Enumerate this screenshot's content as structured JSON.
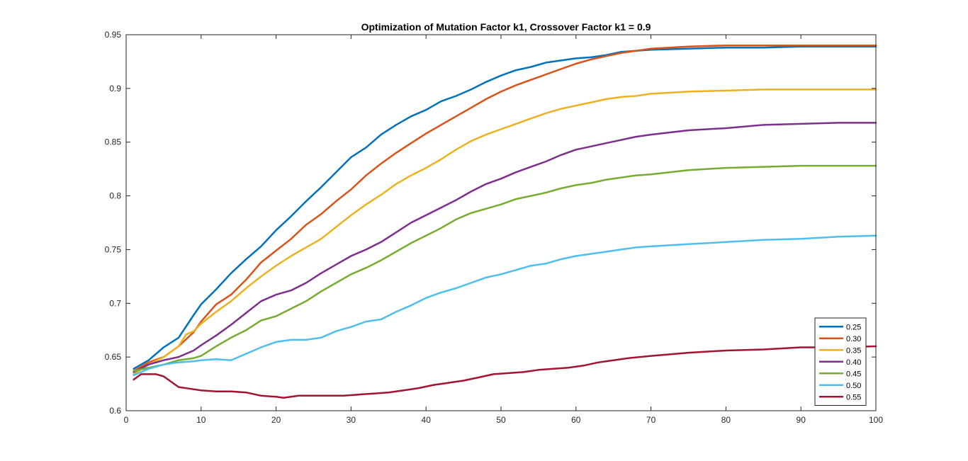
{
  "chart_data": {
    "type": "line",
    "title": "Optimization of Mutation Factor k1, Crossover Factor k1 = 0.9",
    "xlabel": "",
    "ylabel": "",
    "xlim": [
      0,
      100
    ],
    "ylim": [
      0.6,
      0.95
    ],
    "xticks": [
      "0",
      "10",
      "20",
      "30",
      "40",
      "50",
      "60",
      "70",
      "80",
      "90",
      "100"
    ],
    "yticks": [
      "0.6",
      "0.65",
      "0.7",
      "0.75",
      "0.8",
      "0.85",
      "0.9",
      "0.95"
    ],
    "grid": false,
    "legend_position": "bottom-right",
    "series": [
      {
        "name": "0.25",
        "color": "#0072BD",
        "points": [
          [
            1,
            0.639
          ],
          [
            3,
            0.647
          ],
          [
            5,
            0.659
          ],
          [
            7,
            0.668
          ],
          [
            9,
            0.689
          ],
          [
            10,
            0.699
          ],
          [
            12,
            0.713
          ],
          [
            14,
            0.728
          ],
          [
            16,
            0.741
          ],
          [
            18,
            0.753
          ],
          [
            20,
            0.768
          ],
          [
            22,
            0.781
          ],
          [
            24,
            0.795
          ],
          [
            26,
            0.808
          ],
          [
            28,
            0.822
          ],
          [
            30,
            0.836
          ],
          [
            32,
            0.845
          ],
          [
            34,
            0.857
          ],
          [
            36,
            0.866
          ],
          [
            38,
            0.874
          ],
          [
            40,
            0.88
          ],
          [
            42,
            0.888
          ],
          [
            44,
            0.893
          ],
          [
            46,
            0.899
          ],
          [
            48,
            0.906
          ],
          [
            50,
            0.912
          ],
          [
            52,
            0.917
          ],
          [
            54,
            0.92
          ],
          [
            56,
            0.924
          ],
          [
            58,
            0.926
          ],
          [
            60,
            0.928
          ],
          [
            62,
            0.929
          ],
          [
            64,
            0.931
          ],
          [
            66,
            0.934
          ],
          [
            68,
            0.935
          ],
          [
            70,
            0.936
          ],
          [
            75,
            0.937
          ],
          [
            80,
            0.938
          ],
          [
            85,
            0.938
          ],
          [
            90,
            0.939
          ],
          [
            95,
            0.939
          ],
          [
            100,
            0.939
          ]
        ]
      },
      {
        "name": "0.30",
        "color": "#D95319",
        "points": [
          [
            1,
            0.637
          ],
          [
            3,
            0.645
          ],
          [
            5,
            0.65
          ],
          [
            7,
            0.66
          ],
          [
            9,
            0.673
          ],
          [
            10,
            0.683
          ],
          [
            12,
            0.699
          ],
          [
            14,
            0.708
          ],
          [
            16,
            0.722
          ],
          [
            18,
            0.738
          ],
          [
            20,
            0.749
          ],
          [
            22,
            0.76
          ],
          [
            24,
            0.773
          ],
          [
            26,
            0.783
          ],
          [
            28,
            0.795
          ],
          [
            30,
            0.806
          ],
          [
            32,
            0.819
          ],
          [
            34,
            0.83
          ],
          [
            36,
            0.84
          ],
          [
            38,
            0.849
          ],
          [
            40,
            0.858
          ],
          [
            42,
            0.866
          ],
          [
            44,
            0.874
          ],
          [
            46,
            0.882
          ],
          [
            48,
            0.89
          ],
          [
            50,
            0.897
          ],
          [
            52,
            0.903
          ],
          [
            54,
            0.908
          ],
          [
            56,
            0.913
          ],
          [
            58,
            0.918
          ],
          [
            60,
            0.923
          ],
          [
            62,
            0.927
          ],
          [
            64,
            0.93
          ],
          [
            66,
            0.933
          ],
          [
            68,
            0.935
          ],
          [
            70,
            0.937
          ],
          [
            75,
            0.939
          ],
          [
            80,
            0.94
          ],
          [
            85,
            0.94
          ],
          [
            90,
            0.94
          ],
          [
            95,
            0.94
          ],
          [
            100,
            0.94
          ]
        ]
      },
      {
        "name": "0.35",
        "color": "#EDB120",
        "points": [
          [
            1,
            0.634
          ],
          [
            3,
            0.643
          ],
          [
            5,
            0.65
          ],
          [
            7,
            0.66
          ],
          [
            8,
            0.671
          ],
          [
            9,
            0.674
          ],
          [
            10,
            0.681
          ],
          [
            12,
            0.692
          ],
          [
            14,
            0.702
          ],
          [
            16,
            0.714
          ],
          [
            18,
            0.725
          ],
          [
            20,
            0.735
          ],
          [
            22,
            0.744
          ],
          [
            24,
            0.752
          ],
          [
            26,
            0.76
          ],
          [
            28,
            0.771
          ],
          [
            30,
            0.782
          ],
          [
            32,
            0.792
          ],
          [
            34,
            0.801
          ],
          [
            36,
            0.811
          ],
          [
            38,
            0.819
          ],
          [
            40,
            0.826
          ],
          [
            42,
            0.834
          ],
          [
            44,
            0.843
          ],
          [
            46,
            0.851
          ],
          [
            48,
            0.857
          ],
          [
            50,
            0.862
          ],
          [
            52,
            0.867
          ],
          [
            54,
            0.872
          ],
          [
            56,
            0.877
          ],
          [
            58,
            0.881
          ],
          [
            60,
            0.884
          ],
          [
            62,
            0.887
          ],
          [
            64,
            0.89
          ],
          [
            66,
            0.892
          ],
          [
            68,
            0.893
          ],
          [
            70,
            0.895
          ],
          [
            75,
            0.897
          ],
          [
            80,
            0.898
          ],
          [
            85,
            0.899
          ],
          [
            90,
            0.899
          ],
          [
            95,
            0.899
          ],
          [
            100,
            0.899
          ]
        ]
      },
      {
        "name": "0.40",
        "color": "#7E2F8E",
        "points": [
          [
            1,
            0.636
          ],
          [
            3,
            0.643
          ],
          [
            5,
            0.647
          ],
          [
            7,
            0.65
          ],
          [
            9,
            0.656
          ],
          [
            10,
            0.661
          ],
          [
            12,
            0.67
          ],
          [
            14,
            0.68
          ],
          [
            16,
            0.691
          ],
          [
            18,
            0.702
          ],
          [
            20,
            0.708
          ],
          [
            22,
            0.712
          ],
          [
            24,
            0.719
          ],
          [
            26,
            0.728
          ],
          [
            28,
            0.736
          ],
          [
            30,
            0.744
          ],
          [
            32,
            0.75
          ],
          [
            34,
            0.757
          ],
          [
            36,
            0.766
          ],
          [
            38,
            0.775
          ],
          [
            40,
            0.782
          ],
          [
            42,
            0.789
          ],
          [
            44,
            0.796
          ],
          [
            46,
            0.804
          ],
          [
            48,
            0.811
          ],
          [
            50,
            0.816
          ],
          [
            52,
            0.822
          ],
          [
            54,
            0.827
          ],
          [
            56,
            0.832
          ],
          [
            58,
            0.838
          ],
          [
            60,
            0.843
          ],
          [
            62,
            0.846
          ],
          [
            64,
            0.849
          ],
          [
            66,
            0.852
          ],
          [
            68,
            0.855
          ],
          [
            70,
            0.857
          ],
          [
            75,
            0.861
          ],
          [
            80,
            0.863
          ],
          [
            85,
            0.866
          ],
          [
            90,
            0.867
          ],
          [
            95,
            0.868
          ],
          [
            100,
            0.868
          ]
        ]
      },
      {
        "name": "0.45",
        "color": "#77AC30",
        "points": [
          [
            1,
            0.637
          ],
          [
            3,
            0.64
          ],
          [
            5,
            0.643
          ],
          [
            7,
            0.647
          ],
          [
            9,
            0.649
          ],
          [
            10,
            0.651
          ],
          [
            12,
            0.66
          ],
          [
            14,
            0.668
          ],
          [
            16,
            0.675
          ],
          [
            18,
            0.684
          ],
          [
            20,
            0.688
          ],
          [
            22,
            0.695
          ],
          [
            24,
            0.702
          ],
          [
            26,
            0.711
          ],
          [
            28,
            0.719
          ],
          [
            30,
            0.727
          ],
          [
            32,
            0.733
          ],
          [
            34,
            0.74
          ],
          [
            36,
            0.748
          ],
          [
            38,
            0.756
          ],
          [
            40,
            0.763
          ],
          [
            42,
            0.77
          ],
          [
            44,
            0.778
          ],
          [
            46,
            0.784
          ],
          [
            48,
            0.788
          ],
          [
            50,
            0.792
          ],
          [
            52,
            0.797
          ],
          [
            54,
            0.8
          ],
          [
            56,
            0.803
          ],
          [
            58,
            0.807
          ],
          [
            60,
            0.81
          ],
          [
            62,
            0.812
          ],
          [
            64,
            0.815
          ],
          [
            66,
            0.817
          ],
          [
            68,
            0.819
          ],
          [
            70,
            0.82
          ],
          [
            75,
            0.824
          ],
          [
            80,
            0.826
          ],
          [
            85,
            0.827
          ],
          [
            90,
            0.828
          ],
          [
            95,
            0.828
          ],
          [
            100,
            0.828
          ]
        ]
      },
      {
        "name": "0.50",
        "color": "#4DBEEE",
        "points": [
          [
            1,
            0.633
          ],
          [
            3,
            0.639
          ],
          [
            5,
            0.643
          ],
          [
            7,
            0.645
          ],
          [
            9,
            0.646
          ],
          [
            10,
            0.647
          ],
          [
            12,
            0.648
          ],
          [
            14,
            0.647
          ],
          [
            16,
            0.653
          ],
          [
            18,
            0.659
          ],
          [
            20,
            0.664
          ],
          [
            22,
            0.666
          ],
          [
            24,
            0.666
          ],
          [
            26,
            0.668
          ],
          [
            28,
            0.674
          ],
          [
            30,
            0.678
          ],
          [
            32,
            0.683
          ],
          [
            34,
            0.685
          ],
          [
            36,
            0.692
          ],
          [
            38,
            0.698
          ],
          [
            40,
            0.705
          ],
          [
            42,
            0.71
          ],
          [
            44,
            0.714
          ],
          [
            46,
            0.719
          ],
          [
            48,
            0.724
          ],
          [
            50,
            0.727
          ],
          [
            52,
            0.731
          ],
          [
            54,
            0.735
          ],
          [
            56,
            0.737
          ],
          [
            58,
            0.741
          ],
          [
            60,
            0.744
          ],
          [
            62,
            0.746
          ],
          [
            64,
            0.748
          ],
          [
            66,
            0.75
          ],
          [
            68,
            0.752
          ],
          [
            70,
            0.753
          ],
          [
            75,
            0.755
          ],
          [
            80,
            0.757
          ],
          [
            85,
            0.759
          ],
          [
            90,
            0.76
          ],
          [
            95,
            0.762
          ],
          [
            100,
            0.763
          ]
        ]
      },
      {
        "name": "0.55",
        "color": "#A2142F",
        "points": [
          [
            1,
            0.629
          ],
          [
            2,
            0.634
          ],
          [
            4,
            0.634
          ],
          [
            5,
            0.632
          ],
          [
            7,
            0.622
          ],
          [
            9,
            0.62
          ],
          [
            10,
            0.619
          ],
          [
            12,
            0.618
          ],
          [
            14,
            0.618
          ],
          [
            16,
            0.617
          ],
          [
            18,
            0.614
          ],
          [
            20,
            0.613
          ],
          [
            21,
            0.612
          ],
          [
            23,
            0.614
          ],
          [
            25,
            0.614
          ],
          [
            27,
            0.614
          ],
          [
            29,
            0.614
          ],
          [
            31,
            0.615
          ],
          [
            33,
            0.616
          ],
          [
            35,
            0.617
          ],
          [
            37,
            0.619
          ],
          [
            39,
            0.621
          ],
          [
            41,
            0.624
          ],
          [
            43,
            0.626
          ],
          [
            45,
            0.628
          ],
          [
            47,
            0.631
          ],
          [
            49,
            0.634
          ],
          [
            51,
            0.635
          ],
          [
            53,
            0.636
          ],
          [
            55,
            0.638
          ],
          [
            57,
            0.639
          ],
          [
            59,
            0.64
          ],
          [
            61,
            0.642
          ],
          [
            63,
            0.645
          ],
          [
            65,
            0.647
          ],
          [
            67,
            0.649
          ],
          [
            70,
            0.651
          ],
          [
            75,
            0.654
          ],
          [
            80,
            0.656
          ],
          [
            85,
            0.657
          ],
          [
            90,
            0.659
          ],
          [
            95,
            0.659
          ],
          [
            100,
            0.66
          ]
        ]
      }
    ]
  }
}
